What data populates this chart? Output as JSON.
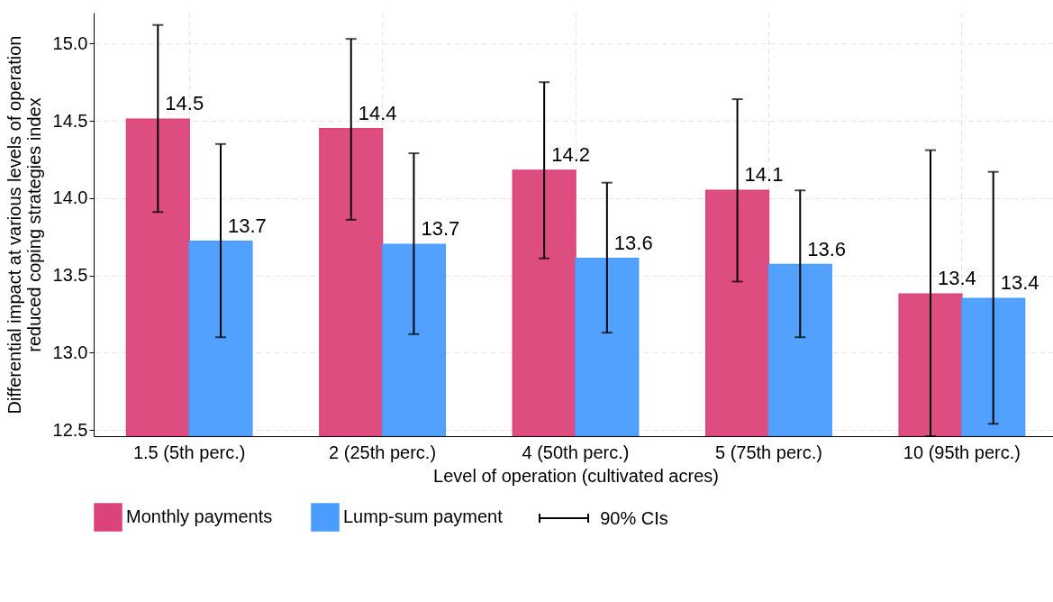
{
  "chart_data": {
    "type": "bar",
    "xlabel": "Level of operation (cultivated acres)",
    "ylabel": "Differential impact at various levels of operation\nreduced coping strategies index",
    "categories": [
      "1.5 (5th perc.)",
      "2 (25th perc.)",
      "4 (50th perc.)",
      "5 (75th perc.)",
      "10 (95th perc.)"
    ],
    "series": [
      {
        "name": "Monthly payments",
        "color": "#dc4379",
        "values": [
          14.51,
          14.45,
          14.18,
          14.05,
          13.38
        ],
        "value_labels": [
          "14.5",
          "14.4",
          "14.2",
          "14.1",
          "13.4"
        ],
        "errors": [
          [
            13.91,
            15.12
          ],
          [
            13.86,
            15.03
          ],
          [
            13.61,
            14.75
          ],
          [
            13.46,
            14.64
          ],
          [
            12.46,
            14.31
          ]
        ]
      },
      {
        "name": "Lump-sum payment",
        "color": "#4a9cff",
        "values": [
          13.72,
          13.7,
          13.61,
          13.57,
          13.35
        ],
        "value_labels": [
          "13.7",
          "13.7",
          "13.6",
          "13.6",
          "13.4"
        ],
        "errors": [
          [
            13.1,
            14.35
          ],
          [
            13.12,
            14.29
          ],
          [
            13.13,
            14.1
          ],
          [
            13.1,
            14.05
          ],
          [
            12.54,
            14.17
          ]
        ]
      }
    ],
    "ylim": [
      12.46,
      15.2
    ],
    "yticks": [
      {
        "value": 12.5,
        "label": "12.5"
      },
      {
        "value": 13,
        "label": "13.0"
      },
      {
        "value": 13.5,
        "label": "13.5"
      },
      {
        "value": 14,
        "label": "14.0"
      },
      {
        "value": 14.5,
        "label": "14.5"
      },
      {
        "value": 15,
        "label": "15.0"
      }
    ],
    "grid": true,
    "legend": "bottom",
    "annotations": [
      "90% CIs"
    ]
  }
}
